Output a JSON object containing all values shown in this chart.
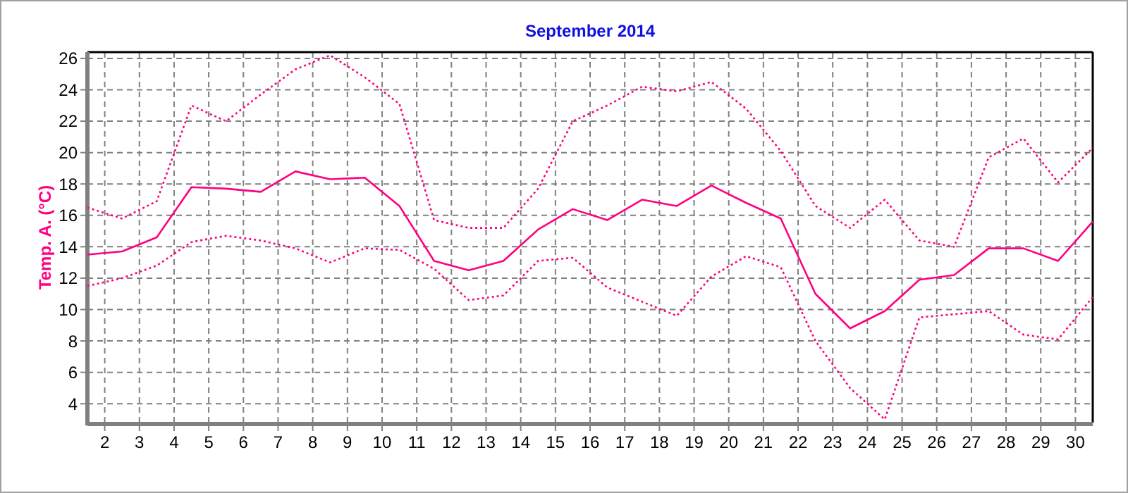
{
  "chart_data": {
    "type": "line",
    "title": "September 2014",
    "ylabel": "Temp. A. (°C)",
    "x": [
      1.5,
      2.5,
      3.5,
      4.5,
      5.5,
      6.5,
      7.5,
      8.5,
      9.5,
      10.5,
      11.5,
      12.5,
      13.5,
      14.5,
      15.5,
      16.5,
      17.5,
      18.5,
      19.5,
      20.5,
      21.5,
      22.5,
      23.5,
      24.5,
      25.5,
      26.5,
      27.5,
      28.5,
      29.5,
      30.5
    ],
    "series": [
      {
        "color": "#ff0080",
        "line_style": "dotted",
        "values": [
          16.5,
          15.8,
          16.9,
          23.0,
          22.0,
          23.7,
          25.3,
          26.2,
          24.8,
          23.1,
          15.7,
          15.2,
          15.2,
          17.7,
          22.0,
          23.0,
          24.2,
          23.9,
          24.5,
          22.8,
          20.1,
          16.6,
          15.2,
          17.0,
          14.4,
          14.0,
          19.7,
          20.9,
          18.1,
          20.3
        ]
      },
      {
        "color": "#ff0080",
        "line_style": "solid",
        "values": [
          13.5,
          13.7,
          14.6,
          17.8,
          17.7,
          17.5,
          18.8,
          18.3,
          18.4,
          16.6,
          13.1,
          12.5,
          13.1,
          15.1,
          16.4,
          15.7,
          17.0,
          16.6,
          17.9,
          16.8,
          15.8,
          11.0,
          8.8,
          9.9,
          11.9,
          12.2,
          13.9,
          13.9,
          13.1,
          15.6
        ]
      },
      {
        "color": "#ff0080",
        "line_style": "dotted",
        "values": [
          11.5,
          12.0,
          12.8,
          14.3,
          14.7,
          14.4,
          13.9,
          13.0,
          13.9,
          13.8,
          12.6,
          10.6,
          10.9,
          13.1,
          13.3,
          11.4,
          10.5,
          9.6,
          12.1,
          13.4,
          12.7,
          8.0,
          5.0,
          3.0,
          9.5,
          9.7,
          9.9,
          8.4,
          8.1,
          10.8
        ]
      }
    ],
    "xlim": [
      1.5,
      30.5
    ],
    "xticks": [
      2,
      3,
      4,
      5,
      6,
      7,
      8,
      9,
      10,
      11,
      12,
      13,
      14,
      15,
      16,
      17,
      18,
      19,
      20,
      21,
      22,
      23,
      24,
      25,
      26,
      27,
      28,
      29,
      30
    ],
    "ylim": [
      2.8,
      26.4
    ],
    "yticks": [
      4,
      6,
      8,
      10,
      12,
      14,
      16,
      18,
      20,
      22,
      24,
      26
    ],
    "grid": true,
    "marker": "none"
  }
}
